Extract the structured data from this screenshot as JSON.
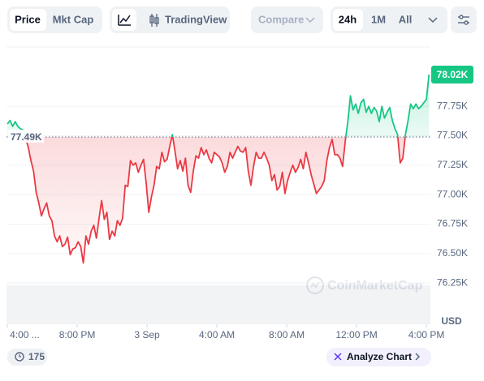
{
  "toolbar": {
    "price": "Price",
    "mkt_cap": "Mkt Cap",
    "tradingview": "TradingView",
    "compare": "Compare",
    "range_24h": "24h",
    "range_1m": "1M",
    "range_all": "All"
  },
  "footer": {
    "history_count": "175",
    "analyze": "Analyze Chart"
  },
  "chart_data": {
    "type": "line",
    "watermark": "CoinMarketCap",
    "y_unit": "USD",
    "up_color": "#16c784",
    "down_color": "#ea3943",
    "grid": true,
    "baseline": {
      "value": 77.49,
      "label": "77.49K"
    },
    "current_price": {
      "value": 78.02,
      "label": "78.02K"
    },
    "xlim": [
      15.95,
      40.23
    ],
    "ylim": [
      75.9,
      78.24
    ],
    "xticks": [
      {
        "value": 16,
        "label": "4:00 ..."
      },
      {
        "value": 20,
        "label": "8:00 PM"
      },
      {
        "value": 24,
        "label": "3 Sep"
      },
      {
        "value": 28,
        "label": "4:00 AM"
      },
      {
        "value": 32,
        "label": "8:00 AM"
      },
      {
        "value": 36,
        "label": "12:00 PM"
      },
      {
        "value": 40,
        "label": "4:00 PM"
      }
    ],
    "yticks": [
      {
        "value": 77.75,
        "label": "77.75K"
      },
      {
        "value": 77.5,
        "label": "77.50K"
      },
      {
        "value": 77.25,
        "label": "77.25K"
      },
      {
        "value": 77,
        "label": "77.00K"
      },
      {
        "value": 76.75,
        "label": "76.75K"
      },
      {
        "value": 76.5,
        "label": "76.50K"
      },
      {
        "value": 76.25,
        "label": "76.25K"
      }
    ],
    "x": [
      16,
      16.15,
      16.3,
      16.45,
      16.6,
      16.75,
      16.9,
      17.05,
      17.2,
      17.35,
      17.5,
      17.65,
      17.8,
      17.95,
      18.1,
      18.25,
      18.4,
      18.55,
      18.7,
      18.85,
      19,
      19.15,
      19.3,
      19.45,
      19.6,
      19.75,
      19.9,
      20.05,
      20.2,
      20.35,
      20.5,
      20.65,
      20.8,
      20.95,
      21.1,
      21.25,
      21.4,
      21.55,
      21.7,
      21.85,
      22,
      22.15,
      22.3,
      22.45,
      22.6,
      22.75,
      22.9,
      23.05,
      23.2,
      23.35,
      23.5,
      23.65,
      23.8,
      23.95,
      24.1,
      24.25,
      24.4,
      24.55,
      24.7,
      24.85,
      25,
      25.15,
      25.3,
      25.45,
      25.6,
      25.75,
      25.9,
      26.05,
      26.2,
      26.35,
      26.5,
      26.65,
      26.8,
      26.95,
      27.1,
      27.25,
      27.4,
      27.55,
      27.7,
      27.85,
      28,
      28.15,
      28.3,
      28.45,
      28.6,
      28.75,
      28.9,
      29.05,
      29.2,
      29.35,
      29.5,
      29.65,
      29.8,
      29.95,
      30.1,
      30.25,
      30.4,
      30.55,
      30.7,
      30.85,
      31,
      31.15,
      31.3,
      31.45,
      31.6,
      31.75,
      31.9,
      32.05,
      32.2,
      32.35,
      32.5,
      32.65,
      32.8,
      32.95,
      33.1,
      33.25,
      33.4,
      33.55,
      33.7,
      33.85,
      34,
      34.15,
      34.3,
      34.45,
      34.6,
      34.75,
      34.9,
      35.05,
      35.2,
      35.35,
      35.5,
      35.65,
      35.8,
      35.95,
      36.1,
      36.25,
      36.4,
      36.55,
      36.7,
      36.85,
      37,
      37.15,
      37.3,
      37.45,
      37.6,
      37.75,
      37.9,
      38.05,
      38.2,
      38.35,
      38.5,
      38.65,
      38.8,
      38.95,
      39.1,
      39.25,
      39.4,
      39.55,
      39.7,
      39.85,
      40,
      40.15
    ],
    "values": [
      77.6,
      77.63,
      77.58,
      77.62,
      77.58,
      77.56,
      77.55,
      77.48,
      77.4,
      77.29,
      77.2,
      77.02,
      76.93,
      76.82,
      76.88,
      76.93,
      76.82,
      76.78,
      76.65,
      76.6,
      76.65,
      76.56,
      76.58,
      76.64,
      76.49,
      76.54,
      76.55,
      76.6,
      76.56,
      76.42,
      76.65,
      76.58,
      76.69,
      76.74,
      76.63,
      76.8,
      76.95,
      76.79,
      76.85,
      76.62,
      76.69,
      76.65,
      76.78,
      76.74,
      76.8,
      77.08,
      77.07,
      77.29,
      77.25,
      77.27,
      77.19,
      77.25,
      77.3,
      77.1,
      76.85,
      76.98,
      77.08,
      77.24,
      77.22,
      77.36,
      77.28,
      77.3,
      77.41,
      77.51,
      77.37,
      77.22,
      77.29,
      77.2,
      77.31,
      77.08,
      77.02,
      77.2,
      77.33,
      77.31,
      77.4,
      77.34,
      77.38,
      77.31,
      77.27,
      77.36,
      77.34,
      77.32,
      77.27,
      77.19,
      77.24,
      77.36,
      77.31,
      77.36,
      77.41,
      77.37,
      77.36,
      77.4,
      77.2,
      77.08,
      77.24,
      77.36,
      77.31,
      77.31,
      77.36,
      77.31,
      77.25,
      77.12,
      77.17,
      77.04,
      77.07,
      77.19,
      77.01,
      77.12,
      77.19,
      77.25,
      77.19,
      77.23,
      77.3,
      77.22,
      77.36,
      77.27,
      77.17,
      77.09,
      77.01,
      77.04,
      77.07,
      77.12,
      77.29,
      77.4,
      77.47,
      77.34,
      77.34,
      77.31,
      77.24,
      77.45,
      77.62,
      77.84,
      77.72,
      77.77,
      77.69,
      77.78,
      77.81,
      77.7,
      77.75,
      77.69,
      77.74,
      77.71,
      77.62,
      77.75,
      77.65,
      77.7,
      77.74,
      77.63,
      77.56,
      77.51,
      77.27,
      77.31,
      77.51,
      77.63,
      77.77,
      77.73,
      77.77,
      77.73,
      77.75,
      77.78,
      77.81,
      78.02
    ]
  }
}
